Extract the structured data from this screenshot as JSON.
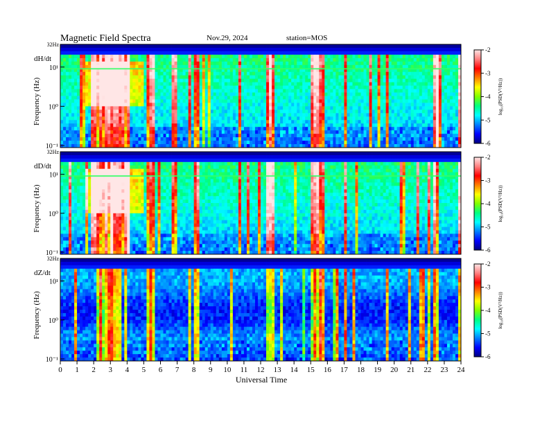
{
  "header": {
    "title": "Magnetic Field Spectra",
    "date": "Nov.29, 2024",
    "station": "station=MOS"
  },
  "chart_data": {
    "type": "heatmap",
    "xlabel": "Universal Time",
    "x_ticks": [
      "0",
      "1",
      "2",
      "3",
      "4",
      "5",
      "6",
      "7",
      "8",
      "9",
      "10",
      "11",
      "12",
      "13",
      "14",
      "15",
      "16",
      "17",
      "18",
      "19",
      "20",
      "21",
      "22",
      "23",
      "24"
    ],
    "xlim": [
      0,
      24
    ],
    "y_scale": "log",
    "colorbar": {
      "label": "log₁₀(PSD(V²/Hz))",
      "ticks": [
        "-2",
        "-3",
        "-4",
        "-5",
        "-6"
      ],
      "range": [
        -6,
        -2
      ],
      "colormap": [
        "#00007f",
        "#0000ff",
        "#007fff",
        "#00ffff",
        "#00ff80",
        "#80ff00",
        "#ffff00",
        "#ff8000",
        "#ff0000",
        "#ff8080",
        "#ffe6e6"
      ]
    },
    "panels": [
      {
        "component": "dH/dt",
        "ylabel": "Frequency (Hz)",
        "top_label": "32Hz",
        "y_ticks": [
          "10¹",
          "10⁰",
          "10⁻¹"
        ],
        "active_hours": [
          [
            1.8,
            4.2
          ],
          [
            5.2,
            5.6
          ],
          [
            6.7,
            7.0
          ],
          [
            8.0,
            8.3
          ],
          [
            12.4,
            12.9
          ],
          [
            15.0,
            15.8
          ],
          [
            22.3,
            22.6
          ],
          [
            23.9,
            24.0
          ]
        ]
      },
      {
        "component": "dD/dt",
        "ylabel": "Frequency (Hz)",
        "top_label": "32Hz",
        "y_ticks": [
          "10¹",
          "10⁰",
          "10⁻¹"
        ],
        "active_hours": [
          [
            1.8,
            4.2
          ],
          [
            5.2,
            5.6
          ],
          [
            6.7,
            7.0
          ],
          [
            8.0,
            8.3
          ],
          [
            12.4,
            12.9
          ],
          [
            15.0,
            15.8
          ],
          [
            22.3,
            22.6
          ],
          [
            23.9,
            24.0
          ]
        ]
      },
      {
        "component": "dZ/dt",
        "ylabel": "Frequency (Hz)",
        "top_label": "32Hz",
        "y_ticks": [
          "10¹",
          "10⁰",
          "10⁻¹"
        ],
        "active_hours": [
          [
            2.3,
            3.6
          ],
          [
            5.2,
            5.6
          ],
          [
            8.0,
            8.3
          ],
          [
            12.4,
            12.9
          ],
          [
            15.0,
            15.8
          ],
          [
            22.3,
            22.6
          ],
          [
            23.9,
            24.0
          ]
        ]
      }
    ]
  }
}
